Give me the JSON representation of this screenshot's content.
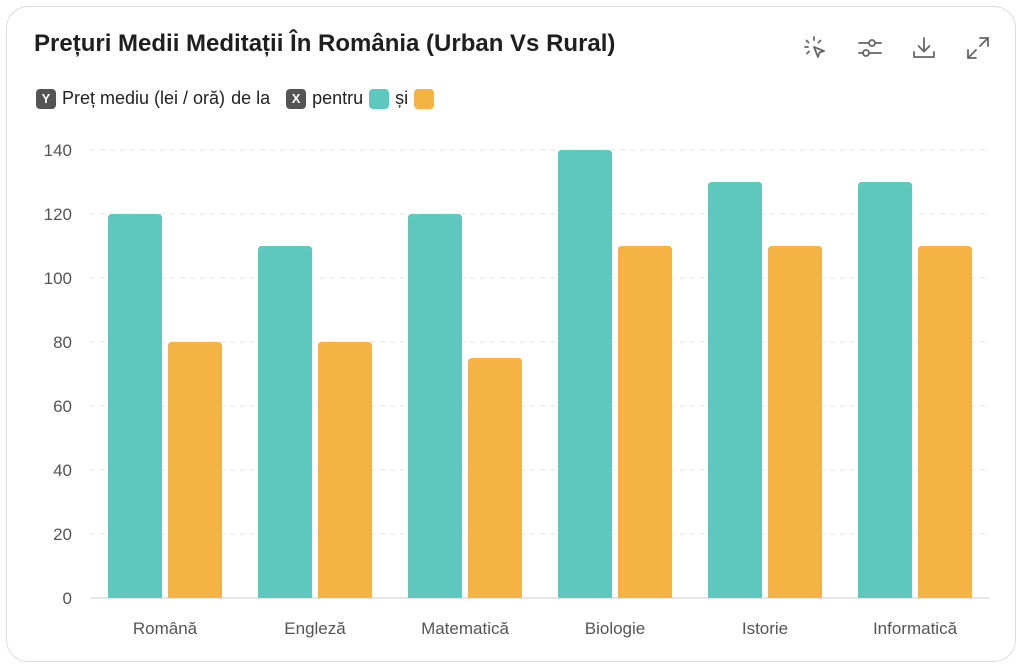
{
  "header": {
    "title": "Prețuri Medii Meditații În România (Urban Vs Rural)"
  },
  "toolbar": {
    "icons": [
      "pointer-click-icon",
      "sliders-icon",
      "download-icon",
      "expand-icon"
    ]
  },
  "legend": {
    "y_chip": "Y",
    "y_text": "Preț mediu (lei / oră)",
    "connector": "de la",
    "x_chip": "X",
    "for_text": "pentru",
    "and_text": "și"
  },
  "chart_data": {
    "type": "bar",
    "categories": [
      "Română",
      "Engleză",
      "Matematică",
      "Biologie",
      "Istorie",
      "Informatică"
    ],
    "series": [
      {
        "values": [
          120,
          110,
          120,
          140,
          130,
          130
        ],
        "color": "#5ec8bf"
      },
      {
        "values": [
          80,
          80,
          75,
          110,
          110,
          110
        ],
        "color": "#f4b342"
      }
    ],
    "ylim": [
      0,
      140
    ],
    "yticks": [
      0,
      20,
      40,
      60,
      80,
      100,
      120,
      140
    ],
    "grid": true,
    "xlabel": "",
    "ylabel": ""
  }
}
